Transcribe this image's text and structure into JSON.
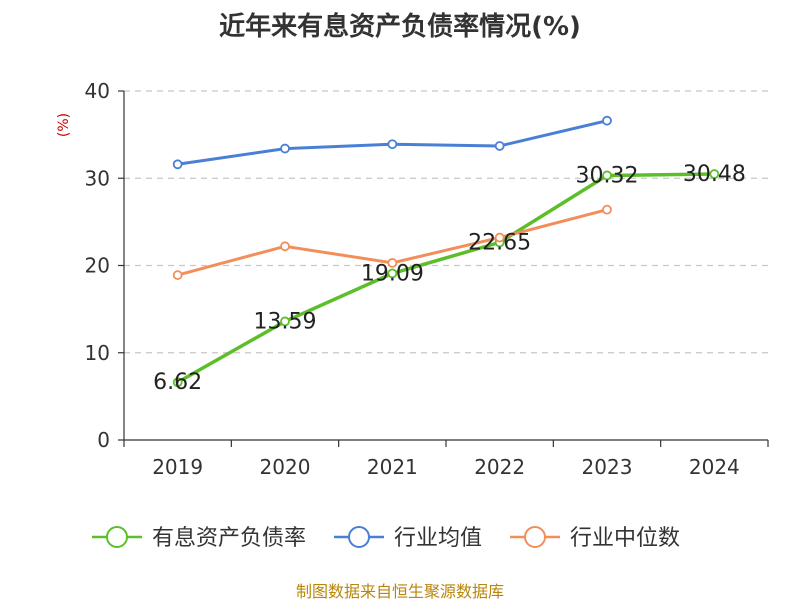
{
  "title": "近年来有息资产负债率情况(%)",
  "source": "制图数据来自恒生聚源数据库",
  "chart_data": {
    "type": "line",
    "title": "近年来有息资产负债率情况(%)",
    "ylabel": "(%)",
    "categories": [
      "2019",
      "2020",
      "2021",
      "2022",
      "2023",
      "2024"
    ],
    "ylim": [
      0,
      40
    ],
    "yticks": [
      0,
      10,
      20,
      30,
      40
    ],
    "grid": true,
    "legend_position": "bottom",
    "series": [
      {
        "name": "有息资产负债率",
        "color": "#5cbf2a",
        "values": [
          6.62,
          13.59,
          19.09,
          22.65,
          30.32,
          30.48
        ],
        "labels": [
          "6.62",
          "13.59",
          "19.09",
          "22.65",
          "30.32",
          "30.48"
        ]
      },
      {
        "name": "行业均值",
        "color": "#4a7fd6",
        "values": [
          31.6,
          33.4,
          33.9,
          33.7,
          36.6,
          null
        ]
      },
      {
        "name": "行业中位数",
        "color": "#f28e5a",
        "values": [
          18.9,
          22.2,
          20.3,
          23.2,
          26.4,
          null
        ]
      }
    ]
  }
}
